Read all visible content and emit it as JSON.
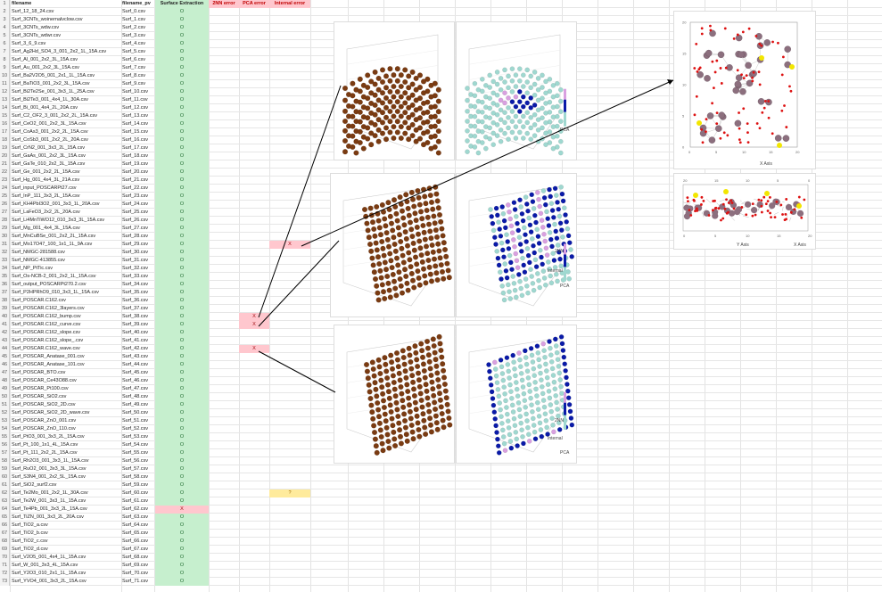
{
  "sheet": {
    "headers": {
      "filename": "filename",
      "filename_pv": "filename_pv",
      "surface_extraction": "Surface Extraction",
      "nn_error": "2NN error",
      "pca_error": "PCA error",
      "internal_error": "Internal error"
    },
    "rows": [
      {
        "n": "2",
        "a": "Surf_12_18_24.csv",
        "b": "Surf_0.csv",
        "c": "O",
        "e": "",
        "f": ""
      },
      {
        "n": "3",
        "a": "Surf_3CNTs_woinernalvclow.csv",
        "b": "Surf_1.csv",
        "c": "O",
        "e": "",
        "f": ""
      },
      {
        "n": "4",
        "a": "Surf_3CNTs_wdw.csv",
        "b": "Surf_2.csv",
        "c": "O",
        "e": "",
        "f": ""
      },
      {
        "n": "5",
        "a": "Surf_3CNTs_wdwr.csv",
        "b": "Surf_3.csv",
        "c": "O",
        "e": "",
        "f": ""
      },
      {
        "n": "6",
        "a": "Surf_3_6_9.csv",
        "b": "Surf_4.csv",
        "c": "O",
        "e": "",
        "f": ""
      },
      {
        "n": "7",
        "a": "Surf_Ag2Hd_SO4_3_001_2x2_1L_15A.csv",
        "b": "Surf_5.csv",
        "c": "O",
        "e": "",
        "f": ""
      },
      {
        "n": "8",
        "a": "Surf_Al_001_2x2_3L_15A.csv",
        "b": "Surf_6.csv",
        "c": "O",
        "e": "",
        "f": ""
      },
      {
        "n": "9",
        "a": "Surf_Au_001_2x2_3L_15A.csv",
        "b": "Surf_7.csv",
        "c": "O",
        "e": "",
        "f": ""
      },
      {
        "n": "10",
        "a": "Surf_Ba2V2O5_001_2x1_1L_15A.csv",
        "b": "Surf_8.csv",
        "c": "O",
        "e": "",
        "f": ""
      },
      {
        "n": "11",
        "a": "Surf_BaTiO3_001_2x2_3L_15A.csv",
        "b": "Surf_9.csv",
        "c": "O",
        "e": "",
        "f": ""
      },
      {
        "n": "12",
        "a": "Surf_Bi2Te2Se_001_3x3_1L_25A.csv",
        "b": "Surf_10.csv",
        "c": "O",
        "e": "",
        "f": ""
      },
      {
        "n": "13",
        "a": "Surf_Bi2Te3_001_4x4_1L_30A.csv",
        "b": "Surf_11.csv",
        "c": "O",
        "e": "",
        "f": ""
      },
      {
        "n": "14",
        "a": "Surf_Bi_001_4x4_2L_20A.csv",
        "b": "Surf_12.csv",
        "c": "O",
        "e": "",
        "f": ""
      },
      {
        "n": "15",
        "a": "Surf_C2_OF2_3_001_2x2_2L_15A.csv",
        "b": "Surf_13.csv",
        "c": "O",
        "e": "",
        "f": ""
      },
      {
        "n": "16",
        "a": "Surf_CeO2_001_2x2_3L_15A.csv",
        "b": "Surf_14.csv",
        "c": "O",
        "e": "",
        "f": ""
      },
      {
        "n": "17",
        "a": "Surf_CoAs3_001_2x2_2L_15A.csv",
        "b": "Surf_15.csv",
        "c": "O",
        "e": "",
        "f": ""
      },
      {
        "n": "18",
        "a": "Surf_CoSb3_001_2x2_2L_20A.csv",
        "b": "Surf_16.csv",
        "c": "O",
        "e": "",
        "f": ""
      },
      {
        "n": "19",
        "a": "Surf_CrN2_001_3x3_2L_15A.csv",
        "b": "Surf_17.csv",
        "c": "O",
        "e": "",
        "f": ""
      },
      {
        "n": "20",
        "a": "Surf_GaAs_001_2x2_3L_15A.csv",
        "b": "Surf_18.csv",
        "c": "O",
        "e": "",
        "f": ""
      },
      {
        "n": "21",
        "a": "Surf_GaTe_010_2x2_3L_15A.csv",
        "b": "Surf_19.csv",
        "c": "O",
        "e": "",
        "f": ""
      },
      {
        "n": "22",
        "a": "Surf_Ge_001_2x2_2L_15A.csv",
        "b": "Surf_20.csv",
        "c": "O",
        "e": "",
        "f": ""
      },
      {
        "n": "23",
        "a": "Surf_Hg_001_4x4_3L_21A.csv",
        "b": "Surf_21.csv",
        "c": "O",
        "e": "",
        "f": ""
      },
      {
        "n": "24",
        "a": "Surf_input_POSCARPt27.csv",
        "b": "Surf_22.csv",
        "c": "O",
        "e": "",
        "f": ""
      },
      {
        "n": "25",
        "a": "Surf_InP_111_3x3_2L_15A.csv",
        "b": "Surf_23.csv",
        "c": "O",
        "e": "",
        "f": ""
      },
      {
        "n": "26",
        "a": "Surf_KH4PbI3O2_001_3x3_1L_20A.csv",
        "b": "Surf_24.csv",
        "c": "O",
        "e": "",
        "f": ""
      },
      {
        "n": "27",
        "a": "Surf_LaFeO3_2x2_2L_20A.csv",
        "b": "Surf_25.csv",
        "c": "O",
        "e": "",
        "f": ""
      },
      {
        "n": "28",
        "a": "Surf_Li4MnTiWO12_010_3x3_3L_15A.csv",
        "b": "Surf_26.csv",
        "c": "O",
        "e": "",
        "f": ""
      },
      {
        "n": "29",
        "a": "Surf_Mg_001_4x4_3L_15A.csv",
        "b": "Surf_27.csv",
        "c": "O",
        "e": "",
        "f": ""
      },
      {
        "n": "30",
        "a": "Surf_MnCuBSe_001_2x2_2L_15A.csv",
        "b": "Surf_28.csv",
        "c": "O",
        "e": "",
        "f": ""
      },
      {
        "n": "31",
        "a": "Surf_Mo17O47_100_1x1_1L_9A.csv",
        "b": "Surf_29.csv",
        "c": "O",
        "e": "",
        "f": "X"
      },
      {
        "n": "32",
        "a": "Surf_NMGC-281588.csv",
        "b": "Surf_30.csv",
        "c": "O",
        "e": "",
        "f": ""
      },
      {
        "n": "33",
        "a": "Surf_NMGC-413855.csv",
        "b": "Surf_31.csv",
        "c": "O",
        "e": "",
        "f": ""
      },
      {
        "n": "34",
        "a": "Surf_NP_PtTic.csv",
        "b": "Surf_32.csv",
        "c": "O",
        "e": "",
        "f": ""
      },
      {
        "n": "35",
        "a": "Surf_Os-NCB-2_001_2x2_1L_15A.csv",
        "b": "Surf_33.csv",
        "c": "O",
        "e": "",
        "f": ""
      },
      {
        "n": "36",
        "a": "Surf_output_POSCARPt270.2.csv",
        "b": "Surf_34.csv",
        "c": "O",
        "e": "",
        "f": ""
      },
      {
        "n": "37",
        "a": "Surf_P2HPRhO9_010_3x3_1L_15A.csv",
        "b": "Surf_35.csv",
        "c": "O",
        "e": "",
        "f": ""
      },
      {
        "n": "38",
        "a": "Surf_POSCAR.C162.csv",
        "b": "Surf_36.csv",
        "c": "O",
        "e": "",
        "f": ""
      },
      {
        "n": "39",
        "a": "Surf_POSCAR.C162_3layers.csv",
        "b": "Surf_37.csv",
        "c": "O",
        "e": "",
        "f": ""
      },
      {
        "n": "40",
        "a": "Surf_POSCAR.C162_bump.csv",
        "b": "Surf_38.csv",
        "c": "O",
        "e": "X",
        "f": ""
      },
      {
        "n": "41",
        "a": "Surf_POSCAR.C162_curve.csv",
        "b": "Surf_39.csv",
        "c": "O",
        "e": "X",
        "f": ""
      },
      {
        "n": "42",
        "a": "Surf_POSCAR.C162_slope.csv",
        "b": "Surf_40.csv",
        "c": "O",
        "e": "",
        "f": ""
      },
      {
        "n": "43",
        "a": "Surf_POSCAR.C162_slope_.csv",
        "b": "Surf_41.csv",
        "c": "O",
        "e": "",
        "f": ""
      },
      {
        "n": "44",
        "a": "Surf_POSCAR.C162_wave.csv",
        "b": "Surf_42.csv",
        "c": "O",
        "e": "X",
        "f": ""
      },
      {
        "n": "45",
        "a": "Surf_POSCAR_Anatase_001.csv",
        "b": "Surf_43.csv",
        "c": "O",
        "e": "",
        "f": ""
      },
      {
        "n": "46",
        "a": "Surf_POSCAR_Anatase_101.csv",
        "b": "Surf_44.csv",
        "c": "O",
        "e": "",
        "f": ""
      },
      {
        "n": "47",
        "a": "Surf_POSCAR_BTO.csv",
        "b": "Surf_45.csv",
        "c": "O",
        "e": "",
        "f": ""
      },
      {
        "n": "48",
        "a": "Surf_POSCAR_Ce43O88.csv",
        "b": "Surf_46.csv",
        "c": "O",
        "e": "",
        "f": ""
      },
      {
        "n": "49",
        "a": "Surf_POSCAR_Pt100.csv",
        "b": "Surf_47.csv",
        "c": "O",
        "e": "",
        "f": ""
      },
      {
        "n": "50",
        "a": "Surf_POSCAR_SiO2.csv",
        "b": "Surf_48.csv",
        "c": "O",
        "e": "",
        "f": ""
      },
      {
        "n": "51",
        "a": "Surf_POSCAR_SiO2_2D.csv",
        "b": "Surf_49.csv",
        "c": "O",
        "e": "",
        "f": ""
      },
      {
        "n": "52",
        "a": "Surf_POSCAR_SiO2_2D_wave.csv",
        "b": "Surf_50.csv",
        "c": "O",
        "e": "",
        "f": ""
      },
      {
        "n": "53",
        "a": "Surf_POSCAR_ZnO_001.csv",
        "b": "Surf_51.csv",
        "c": "O",
        "e": "",
        "f": ""
      },
      {
        "n": "54",
        "a": "Surf_POSCAR_ZnO_110.csv",
        "b": "Surf_52.csv",
        "c": "O",
        "e": "",
        "f": ""
      },
      {
        "n": "55",
        "a": "Surf_PtO3_001_3x3_2L_15A.csv",
        "b": "Surf_53.csv",
        "c": "O",
        "e": "",
        "f": ""
      },
      {
        "n": "56",
        "a": "Surf_Pt_100_1x1_4L_15A.csv",
        "b": "Surf_54.csv",
        "c": "O",
        "e": "",
        "f": ""
      },
      {
        "n": "57",
        "a": "Surf_Pt_111_2x2_2L_15A.csv",
        "b": "Surf_55.csv",
        "c": "O",
        "e": "",
        "f": ""
      },
      {
        "n": "58",
        "a": "Surf_Rh2O3_001_3x3_1L_15A.csv",
        "b": "Surf_56.csv",
        "c": "O",
        "e": "",
        "f": ""
      },
      {
        "n": "59",
        "a": "Surf_RuO2_001_3x3_3L_15A.csv",
        "b": "Surf_57.csv",
        "c": "O",
        "e": "",
        "f": ""
      },
      {
        "n": "60",
        "a": "Surf_S3N4_001_2x2_5L_15A.csv",
        "b": "Surf_58.csv",
        "c": "O",
        "e": "",
        "f": ""
      },
      {
        "n": "61",
        "a": "Surf_SiO2_surf2.csv",
        "b": "Surf_59.csv",
        "c": "O",
        "e": "",
        "f": ""
      },
      {
        "n": "62",
        "a": "Surf_Te2Mo_001_2x2_1L_30A.csv",
        "b": "Surf_60.csv",
        "c": "O",
        "e": "",
        "f": "?"
      },
      {
        "n": "63",
        "a": "Surf_Te2W_001_3x3_1L_15A.csv",
        "b": "Surf_61.csv",
        "c": "O",
        "e": "",
        "f": ""
      },
      {
        "n": "64",
        "a": "Surf_Te4Pb_001_3x3_2L_15A.csv",
        "b": "Surf_62.csv",
        "c": "X",
        "e": "",
        "f": ""
      },
      {
        "n": "65",
        "a": "Surf_TiZN_001_3x3_2L_20A.csv",
        "b": "Surf_63.csv",
        "c": "O",
        "e": "",
        "f": ""
      },
      {
        "n": "66",
        "a": "Surf_TiO2_a.csv",
        "b": "Surf_64.csv",
        "c": "O",
        "e": "",
        "f": ""
      },
      {
        "n": "67",
        "a": "Surf_TiO2_b.csv",
        "b": "Surf_65.csv",
        "c": "O",
        "e": "",
        "f": ""
      },
      {
        "n": "68",
        "a": "Surf_TiO2_c.csv",
        "b": "Surf_66.csv",
        "c": "O",
        "e": "",
        "f": ""
      },
      {
        "n": "69",
        "a": "Surf_TiO2_d.csv",
        "b": "Surf_67.csv",
        "c": "O",
        "e": "",
        "f": ""
      },
      {
        "n": "70",
        "a": "Surf_V2O5_001_4x4_1L_15A.csv",
        "b": "Surf_68.csv",
        "c": "O",
        "e": "",
        "f": ""
      },
      {
        "n": "71",
        "a": "Surf_W_001_3x3_4L_15A.csv",
        "b": "Surf_69.csv",
        "c": "O",
        "e": "",
        "f": ""
      },
      {
        "n": "72",
        "a": "Surf_Y2O3_010_2x1_1L_15A.csv",
        "b": "Surf_70.csv",
        "c": "O",
        "e": "",
        "f": ""
      },
      {
        "n": "73",
        "a": "Surf_YVO4_001_3x3_2L_15A.csv",
        "b": "Surf_71.csv",
        "c": "O",
        "e": "",
        "f": ""
      }
    ]
  },
  "plots": {
    "axis_x": "X Axis",
    "axis_y": "Y Axis",
    "axis_z": "Z Axis",
    "legend_labels": [
      "2NN",
      "Internal",
      "PCA"
    ],
    "top_view_x_ticks": [
      "0",
      "5",
      "10",
      "15",
      "20"
    ],
    "top_view_y_ticks": [
      "0",
      "5",
      "10",
      "15",
      "20"
    ],
    "side_view_x_ticks": [
      "0",
      "5",
      "10",
      "15",
      "20"
    ],
    "side_view_y_ticks": [
      "0",
      "5",
      "10"
    ],
    "side_view_top_ticks": [
      "20",
      "15",
      "10",
      "5",
      "0"
    ],
    "tick_numbers": [
      "0",
      "5",
      "10",
      "15",
      "20",
      "25"
    ]
  },
  "colors": {
    "ok_fill": "#c6efce",
    "err_fill": "#ffc7ce",
    "warn_fill": "#ffeb9c",
    "carbon_atom": "#7a3b12",
    "surface_atom": "#9fd8d0",
    "boundary_atom": "#0a1aa8",
    "pink_atom": "#d9a0e0",
    "oxygen_atom": "#dd1111",
    "mo_atom": "#8c6f7e"
  }
}
